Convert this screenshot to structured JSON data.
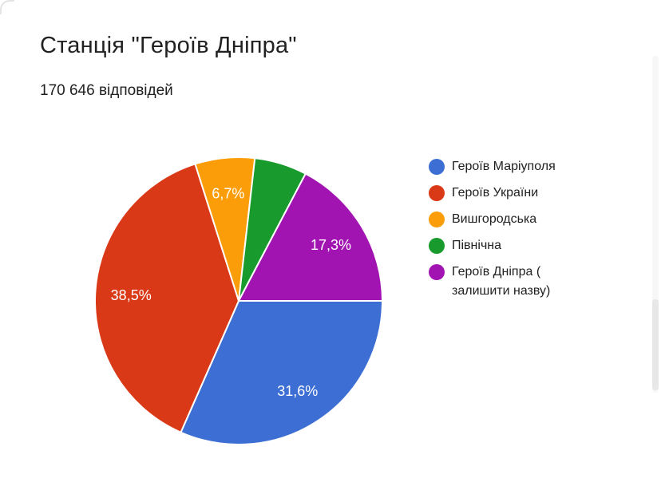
{
  "header": {
    "title": "Станція \"Героїв Дніпра\"",
    "responses_text": "170 646 відповідей"
  },
  "chart_data": {
    "type": "pie",
    "title": "Станція \"Героїв Дніпра\"",
    "subtitle": "170 646 відповідей",
    "responses_count": 170646,
    "legend_position": "right",
    "start_angle_deg": 90,
    "label_radius_factor": 0.75,
    "slices": [
      {
        "label": "Героїв Маріуполя",
        "value_pct": 31.6,
        "pct_label": "31,6%",
        "color": "#3D6ED3"
      },
      {
        "label": "Героїв України",
        "value_pct": 38.5,
        "pct_label": "38,5%",
        "color": "#DA3917"
      },
      {
        "label": "Вишгородська",
        "value_pct": 6.7,
        "pct_label": "6,7%",
        "color": "#FB9D09"
      },
      {
        "label": "Північна",
        "value_pct": 5.9,
        "pct_label": null,
        "color": "#189A2C"
      },
      {
        "label": "Героїв Дніпра ( залишити назву)",
        "value_pct": 17.3,
        "pct_label": "17,3%",
        "color": "#A214B2"
      }
    ]
  },
  "ui_colors": {
    "background": "#ffffff",
    "text": "#212121",
    "slice_gap_stroke": "#ffffff",
    "slice_label_text": "#ffffff"
  }
}
